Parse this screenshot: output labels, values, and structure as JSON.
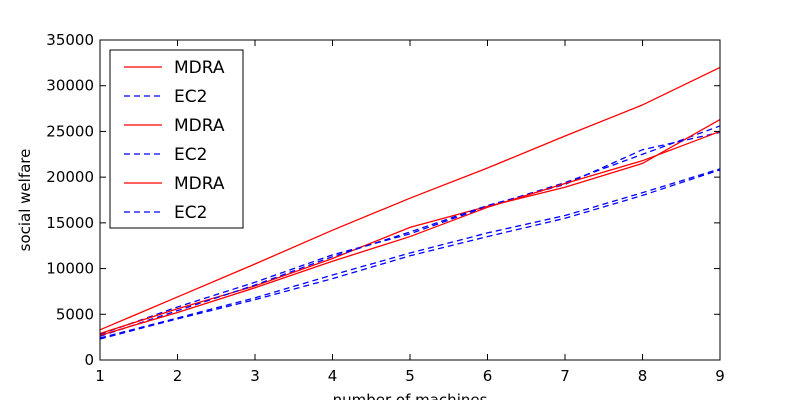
{
  "chart_data": {
    "type": "line",
    "title": "",
    "xlabel": "number of machines",
    "ylabel": "social welfare",
    "xlim": [
      1,
      9
    ],
    "ylim": [
      0,
      35000
    ],
    "xticks": [
      1,
      2,
      3,
      4,
      5,
      6,
      7,
      8,
      9
    ],
    "yticks": [
      0,
      5000,
      10000,
      15000,
      20000,
      25000,
      30000,
      35000
    ],
    "grid": false,
    "legend_position": "top-left",
    "x": [
      1,
      2,
      3,
      4,
      5,
      6,
      7,
      8,
      9
    ],
    "series": [
      {
        "name": "MDRA",
        "color": "#ff0000",
        "dash": "solid",
        "values": [
          3300,
          6900,
          10500,
          14200,
          17700,
          21000,
          24500,
          27900,
          32000
        ]
      },
      {
        "name": "EC2",
        "color": "#0000ff",
        "dash": "dashed",
        "values": [
          2800,
          5800,
          8500,
          11500,
          13800,
          16800,
          19400,
          22500,
          25600
        ]
      },
      {
        "name": "MDRA",
        "color": "#ff0000",
        "dash": "solid",
        "values": [
          2900,
          5600,
          8100,
          11100,
          14500,
          16800,
          18900,
          21500,
          26300
        ]
      },
      {
        "name": "EC2",
        "color": "#0000ff",
        "dash": "dashed",
        "values": [
          2600,
          5400,
          8200,
          11300,
          14000,
          16900,
          19200,
          23000,
          24900
        ]
      },
      {
        "name": "MDRA",
        "color": "#ff0000",
        "dash": "solid",
        "values": [
          2700,
          5200,
          7900,
          10800,
          13500,
          16700,
          19300,
          21800,
          25000
        ]
      },
      {
        "name": "EC2",
        "color": "#0000ff",
        "dash": "dashed",
        "values": [
          2300,
          4500,
          6600,
          8900,
          11400,
          13500,
          15500,
          18000,
          20800
        ]
      }
    ],
    "extra_series_values": [
      {
        "color": "#0000ff",
        "dash": "dashed",
        "values": [
          2400,
          4600,
          6800,
          9300,
          11700,
          13900,
          15800,
          18300,
          20900
        ]
      }
    ]
  }
}
